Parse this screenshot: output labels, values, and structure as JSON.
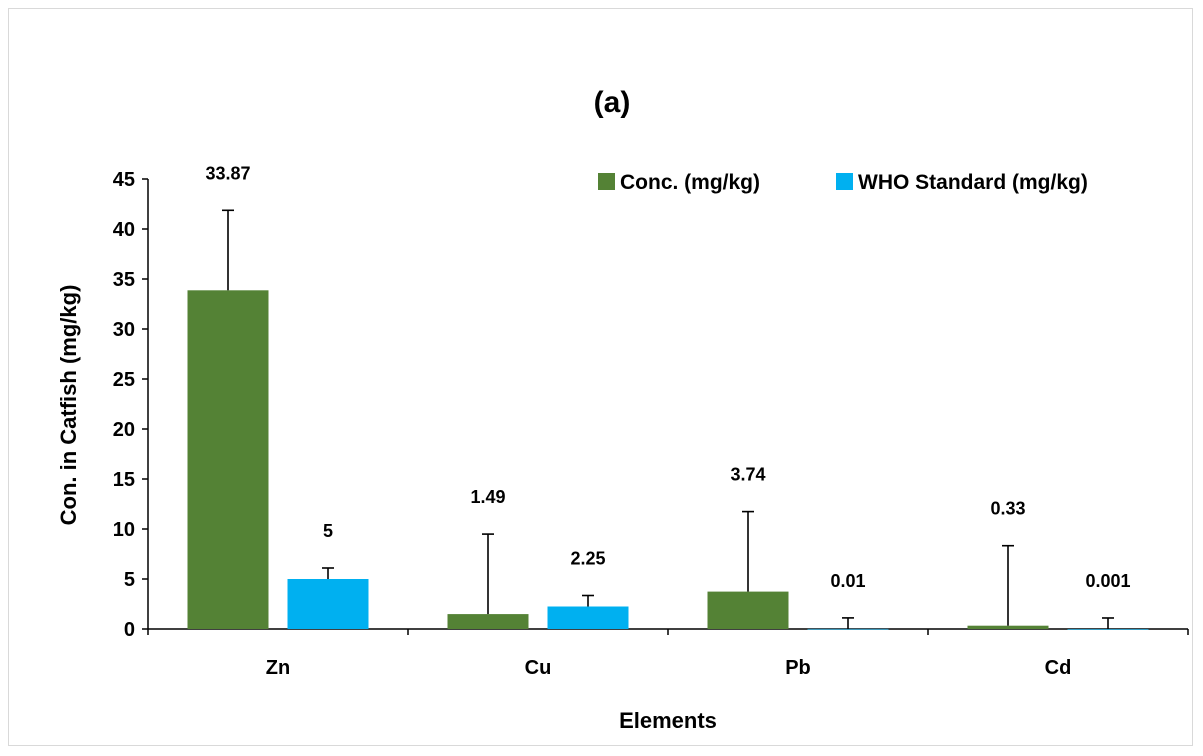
{
  "chart_data": {
    "type": "bar",
    "title": "(a)",
    "xlabel": "Elements",
    "ylabel": "Con. in Catfish (mg/kg)",
    "categories": [
      "Zn",
      "Cu",
      "Pb",
      "Cd"
    ],
    "ylim": [
      0,
      45
    ],
    "yticks": [
      0,
      5,
      10,
      15,
      20,
      25,
      30,
      35,
      40,
      45
    ],
    "legend_position": "top-right",
    "grid": false,
    "series": [
      {
        "name": "Conc. (mg/kg)",
        "color": "#548235",
        "values": [
          33.87,
          1.49,
          3.74,
          0.33
        ],
        "labels": [
          "33.87",
          "1.49",
          "3.74",
          "0.33"
        ],
        "error_plus": [
          8,
          8,
          8,
          8
        ]
      },
      {
        "name": "WHO Standard (mg/kg)",
        "color": "#00b0f0",
        "values": [
          5,
          2.25,
          0.01,
          0.001
        ],
        "labels": [
          "5",
          "2.25",
          "0.01",
          "0.001"
        ],
        "error_plus": [
          1.1,
          1.1,
          1.1,
          1.1
        ]
      }
    ]
  }
}
